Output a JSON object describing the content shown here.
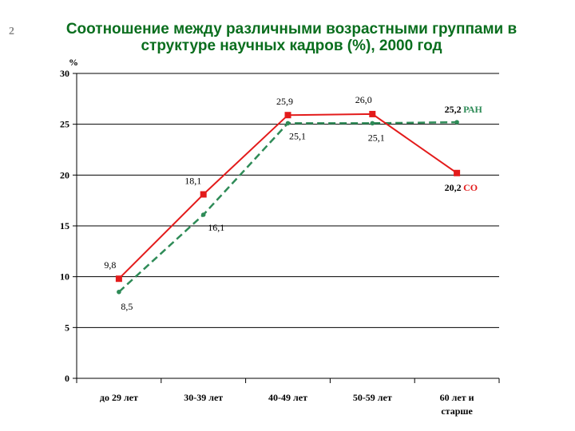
{
  "slide_number": "2",
  "title_line1": "Соотношение между различными возрастными группами в",
  "title_line2": "структуре научных кадров (%), 2000 год",
  "chart_data": {
    "type": "line",
    "ylabel": "%",
    "ylim": [
      0,
      30
    ],
    "yticks": [
      0,
      5,
      10,
      15,
      20,
      25,
      30
    ],
    "grid": true,
    "categories": [
      "до 29 лет",
      "30-39 лет",
      "40-49 лет",
      "50-59 лет",
      "60 лет и старше"
    ],
    "category_lines": [
      [
        "до 29 лет"
      ],
      [
        "30-39 лет"
      ],
      [
        "40-49 лет"
      ],
      [
        "50-59 лет"
      ],
      [
        "60 лет и",
        "старше"
      ]
    ],
    "series": [
      {
        "name": "СО",
        "values": [
          9.8,
          18.1,
          25.9,
          26.0,
          20.2
        ],
        "labels": [
          "9,8",
          "18,1",
          "25,9",
          "26,0",
          "20,2"
        ],
        "color": "#e31b1b",
        "style": "solid",
        "marker": "square"
      },
      {
        "name": "РАН",
        "values": [
          8.5,
          16.1,
          25.1,
          25.1,
          25.2
        ],
        "labels": [
          "8,5",
          "16,1",
          "25,1",
          "25,1",
          "25,2"
        ],
        "color": "#2e8b57",
        "style": "dashed",
        "marker": "dot"
      }
    ]
  }
}
